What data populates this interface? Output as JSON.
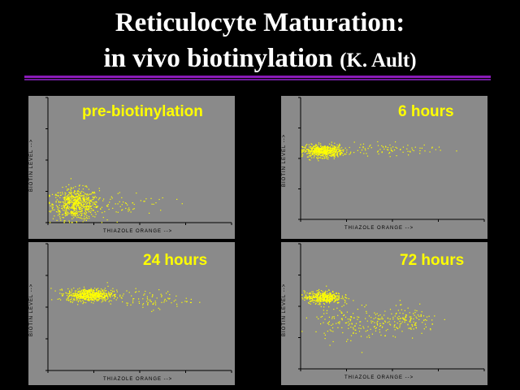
{
  "slide": {
    "title_line1": "Reticulocyte Maturation:",
    "title_line2": "in vivo biotinylation",
    "title_credit": "(K. Ault)"
  },
  "colors": {
    "background": "#000000",
    "rule": "#8a1ab8",
    "panel": "#8a8a8a",
    "points": "#ffff00"
  },
  "chart_data": [
    {
      "type": "scatter",
      "title": "pre-biotinylation",
      "xlabel": "THIAZOLE ORANGE -->",
      "ylabel": "BIOTIN LEVEL -->",
      "xscale": "log",
      "yscale": "log",
      "xlim": [
        1,
        10000
      ],
      "ylim": [
        1,
        10000
      ],
      "grid": false,
      "point_color": "#ffff00",
      "clusters": [
        {
          "center": [
            4,
            4
          ],
          "spread": [
            0.25,
            0.25
          ],
          "count": 650
        },
        {
          "center": [
            40,
            4
          ],
          "spread": [
            0.55,
            0.2
          ],
          "count": 70
        }
      ]
    },
    {
      "type": "scatter",
      "title": "6 hours",
      "xlabel": "THIAZOLE ORANGE -->",
      "ylabel": "BIOTIN LEVEL -->",
      "xscale": "log",
      "yscale": "log",
      "xlim": [
        1,
        10000
      ],
      "ylim": [
        1,
        10000
      ],
      "grid": false,
      "point_color": "#ffff00",
      "clusters": [
        {
          "center": [
            3,
            180
          ],
          "spread": [
            0.22,
            0.1
          ],
          "count": 600
        },
        {
          "center": [
            80,
            200
          ],
          "spread": [
            0.5,
            0.1
          ],
          "count": 80
        }
      ]
    },
    {
      "type": "scatter",
      "title": "24 hours",
      "xlabel": "THIAZOLE ORANGE -->",
      "ylabel": "BIOTIN LEVEL -->",
      "xscale": "log",
      "yscale": "log",
      "xlim": [
        1,
        10000
      ],
      "ylim": [
        1,
        10000
      ],
      "grid": false,
      "point_color": "#ffff00",
      "clusters": [
        {
          "center": [
            8,
            250
          ],
          "spread": [
            0.25,
            0.1
          ],
          "count": 650
        },
        {
          "center": [
            150,
            180
          ],
          "spread": [
            0.45,
            0.15
          ],
          "count": 90
        }
      ]
    },
    {
      "type": "scatter",
      "title": "72 hours",
      "xlabel": "THIAZOLE ORANGE -->",
      "ylabel": "BIOTIN LEVEL -->",
      "xscale": "log",
      "yscale": "log",
      "xlim": [
        1,
        10000
      ],
      "ylim": [
        1,
        10000
      ],
      "grid": false,
      "point_color": "#ffff00",
      "clusters": [
        {
          "center": [
            3,
            200
          ],
          "spread": [
            0.2,
            0.1
          ],
          "count": 450
        },
        {
          "center": [
            12,
            30
          ],
          "spread": [
            0.4,
            0.3
          ],
          "count": 150
        },
        {
          "center": [
            200,
            35
          ],
          "spread": [
            0.35,
            0.2
          ],
          "count": 150
        }
      ]
    }
  ]
}
